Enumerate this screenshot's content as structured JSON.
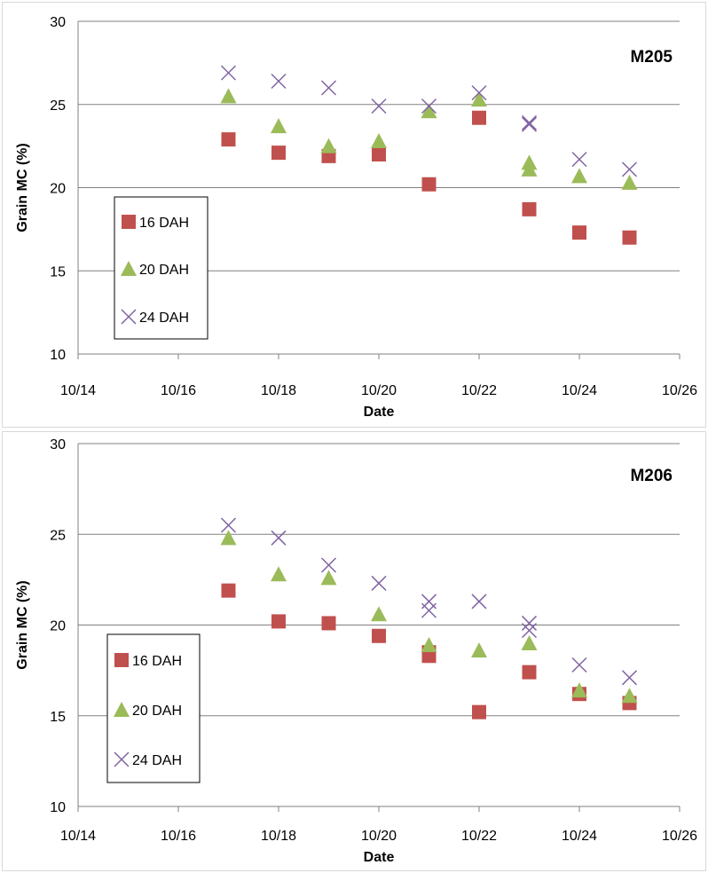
{
  "chart_data": [
    {
      "type": "scatter",
      "title": "M205",
      "xlabel": "Date",
      "ylabel": "Grain MC (%)",
      "x_ticks": [
        "10/14",
        "10/16",
        "10/18",
        "10/20",
        "10/22",
        "10/24",
        "10/26"
      ],
      "y_ticks": [
        "10",
        "15",
        "20",
        "25",
        "30"
      ],
      "ylim": [
        10,
        30
      ],
      "grid": "horizontal",
      "legend_position": "left",
      "series": [
        {
          "name": "16 DAH",
          "marker": "square",
          "color": "#c0504d",
          "points": [
            [
              "10/17",
              22.9
            ],
            [
              "10/18",
              22.1
            ],
            [
              "10/19",
              21.9
            ],
            [
              "10/20",
              22.0
            ],
            [
              "10/21",
              20.2
            ],
            [
              "10/22",
              24.2
            ],
            [
              "10/23",
              18.7
            ],
            [
              "10/24",
              17.3
            ],
            [
              "10/25",
              17.0
            ]
          ]
        },
        {
          "name": "20 DAH",
          "marker": "triangle",
          "color": "#9bbb59",
          "points": [
            [
              "10/17",
              25.5
            ],
            [
              "10/18",
              23.7
            ],
            [
              "10/19",
              22.5
            ],
            [
              "10/20",
              22.8
            ],
            [
              "10/21",
              24.6
            ],
            [
              "10/22",
              25.3
            ],
            [
              "10/23",
              21.1
            ],
            [
              "10/23",
              21.5
            ],
            [
              "10/24",
              20.7
            ],
            [
              "10/25",
              20.3
            ]
          ]
        },
        {
          "name": "24 DAH",
          "marker": "x",
          "color": "#8064a2",
          "points": [
            [
              "10/17",
              26.9
            ],
            [
              "10/18",
              26.4
            ],
            [
              "10/19",
              26.0
            ],
            [
              "10/20",
              24.9
            ],
            [
              "10/21",
              24.9
            ],
            [
              "10/22",
              25.7
            ],
            [
              "10/23",
              23.8
            ],
            [
              "10/23",
              23.9
            ],
            [
              "10/24",
              21.7
            ],
            [
              "10/25",
              21.1
            ]
          ]
        }
      ]
    },
    {
      "type": "scatter",
      "title": "M206",
      "xlabel": "Date",
      "ylabel": "Grain MC (%)",
      "x_ticks": [
        "10/14",
        "10/16",
        "10/18",
        "10/20",
        "10/22",
        "10/24",
        "10/26"
      ],
      "y_ticks": [
        "10",
        "15",
        "20",
        "25",
        "30"
      ],
      "ylim": [
        10,
        30
      ],
      "grid": "horizontal",
      "legend_position": "left",
      "series": [
        {
          "name": "16 DAH",
          "marker": "square",
          "color": "#c0504d",
          "points": [
            [
              "10/17",
              21.9
            ],
            [
              "10/18",
              20.2
            ],
            [
              "10/19",
              20.1
            ],
            [
              "10/20",
              19.4
            ],
            [
              "10/21",
              18.3
            ],
            [
              "10/21",
              18.5
            ],
            [
              "10/22",
              15.2
            ],
            [
              "10/23",
              17.4
            ],
            [
              "10/24",
              16.2
            ],
            [
              "10/25",
              15.7
            ]
          ]
        },
        {
          "name": "20 DAH",
          "marker": "triangle",
          "color": "#9bbb59",
          "points": [
            [
              "10/17",
              24.8
            ],
            [
              "10/18",
              22.8
            ],
            [
              "10/19",
              22.6
            ],
            [
              "10/20",
              20.6
            ],
            [
              "10/21",
              18.9
            ],
            [
              "10/22",
              18.6
            ],
            [
              "10/23",
              19.0
            ],
            [
              "10/24",
              16.4
            ],
            [
              "10/25",
              16.1
            ]
          ]
        },
        {
          "name": "24 DAH",
          "marker": "x",
          "color": "#8064a2",
          "points": [
            [
              "10/17",
              25.5
            ],
            [
              "10/18",
              24.8
            ],
            [
              "10/19",
              23.3
            ],
            [
              "10/20",
              22.3
            ],
            [
              "10/21",
              20.8
            ],
            [
              "10/21",
              21.3
            ],
            [
              "10/22",
              21.3
            ],
            [
              "10/23",
              19.7
            ],
            [
              "10/23",
              20.1
            ],
            [
              "10/24",
              17.8
            ],
            [
              "10/25",
              17.1
            ]
          ]
        }
      ]
    }
  ]
}
